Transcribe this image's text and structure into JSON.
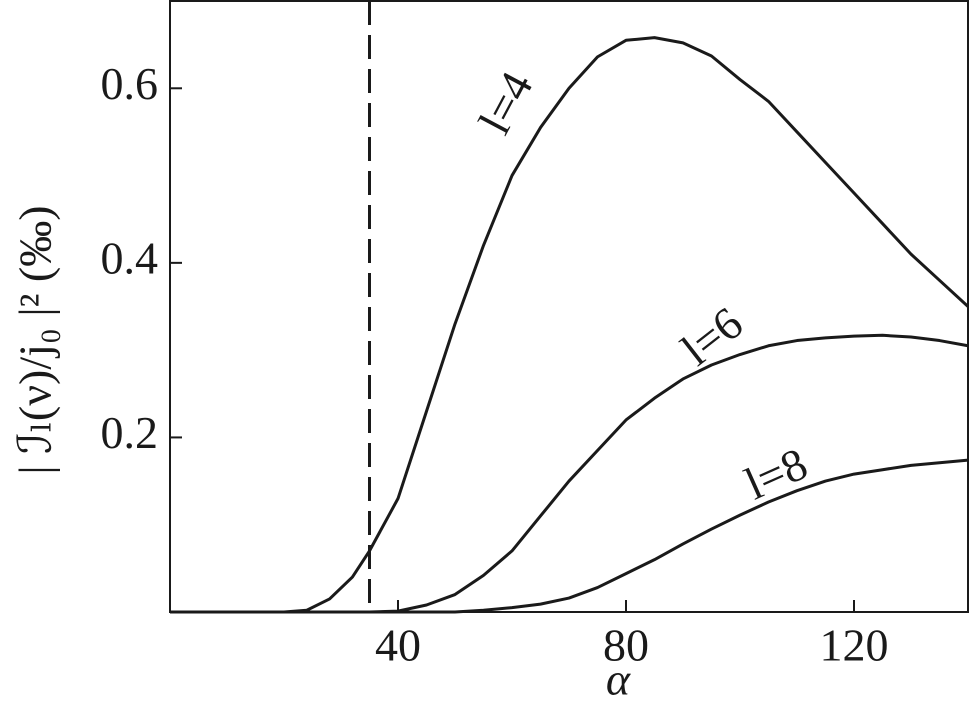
{
  "chart_data": {
    "type": "line",
    "x_label": "α",
    "y_label": "| ℐₗ(ν)/j₀ |² (‰)",
    "x": [
      0,
      20,
      24,
      28,
      32,
      35,
      40,
      45,
      50,
      55,
      60,
      65,
      70,
      75,
      80,
      85,
      90,
      95,
      100,
      105,
      110,
      115,
      120,
      125,
      130,
      135,
      140
    ],
    "series": [
      {
        "name": "l=4",
        "color": "#1a1a1a",
        "values": [
          0,
          0,
          0.002,
          0.015,
          0.04,
          0.07,
          0.13,
          0.23,
          0.33,
          0.42,
          0.5,
          0.555,
          0.6,
          0.636,
          0.655,
          0.658,
          0.652,
          0.637,
          0.61,
          0.585,
          0.55,
          0.515,
          0.48,
          0.445,
          0.41,
          0.38,
          0.35
        ]
      },
      {
        "name": "l=6",
        "color": "#1a1a1a",
        "values": [
          0,
          0,
          0,
          0,
          0,
          0,
          0.001,
          0.008,
          0.02,
          0.042,
          0.07,
          0.11,
          0.15,
          0.185,
          0.22,
          0.245,
          0.267,
          0.283,
          0.295,
          0.305,
          0.311,
          0.314,
          0.316,
          0.317,
          0.315,
          0.311,
          0.305
        ]
      },
      {
        "name": "l=8",
        "color": "#1a1a1a",
        "values": [
          0,
          0,
          0,
          0,
          0,
          0,
          0,
          0,
          0,
          0.002,
          0.005,
          0.009,
          0.016,
          0.028,
          0.044,
          0.06,
          0.078,
          0.095,
          0.111,
          0.126,
          0.139,
          0.15,
          0.158,
          0.163,
          0.168,
          0.171,
          0.174
        ]
      }
    ],
    "vline": 35,
    "xlim": [
      0,
      140
    ],
    "xticks": [
      40,
      80,
      120
    ],
    "ylim": [
      0,
      0.7
    ],
    "yticks": [
      0.2,
      0.4,
      0.6
    ]
  }
}
